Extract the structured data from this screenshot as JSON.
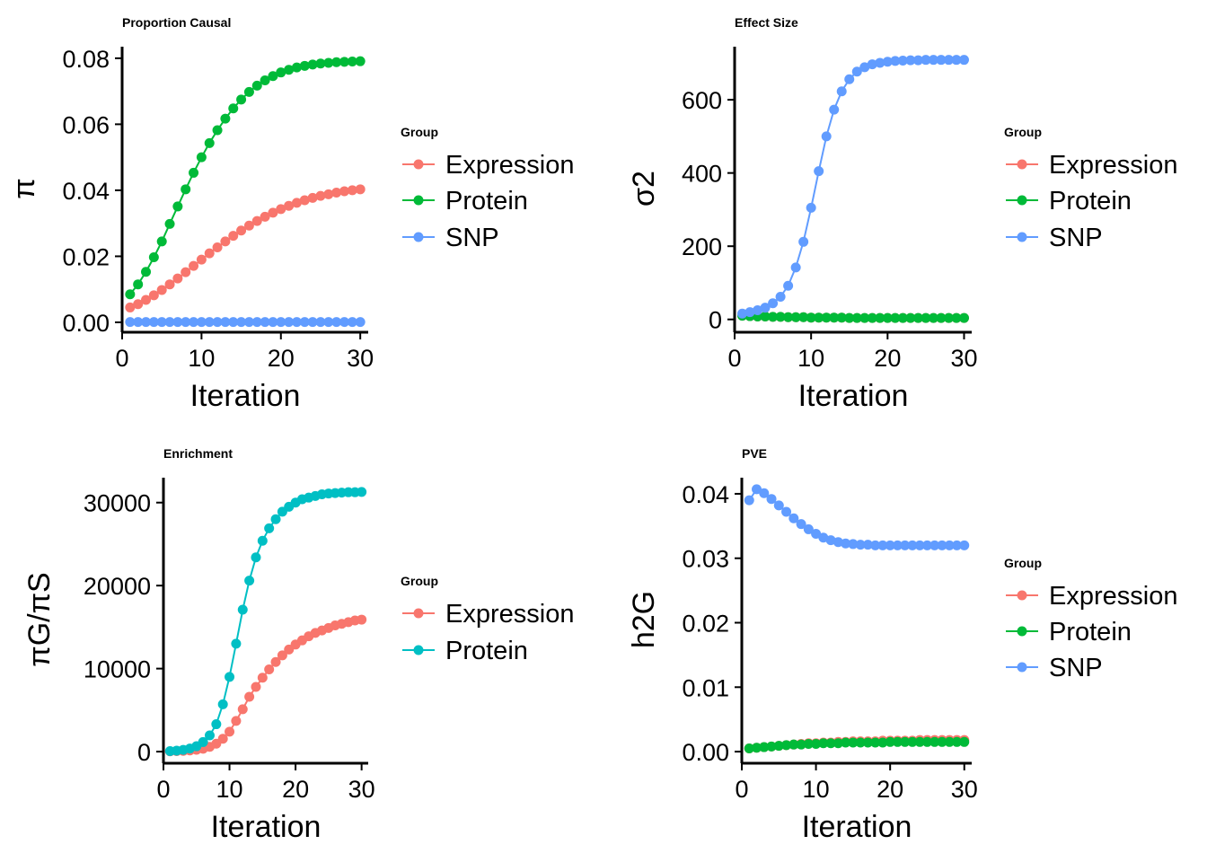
{
  "chart_data": [
    {
      "type": "line",
      "title": "Proportion Causal",
      "xlabel": "Iteration",
      "ylabel": "π",
      "xlim": [
        0,
        31
      ],
      "ylim": [
        -0.003,
        0.0835
      ],
      "x_ticks": [
        0,
        10,
        20,
        30
      ],
      "x_tick_labels": [
        "0",
        "10",
        "20",
        "30"
      ],
      "y_ticks": [
        0,
        0.02,
        0.04,
        0.06,
        0.08
      ],
      "y_tick_labels": [
        "0.00",
        "0.02",
        "0.04",
        "0.06",
        "0.08"
      ],
      "legend": {
        "title": "Group",
        "position": "right"
      },
      "grid": false,
      "series": [
        {
          "name": "Expression",
          "color": "#F8766D",
          "x": [
            1,
            2,
            3,
            4,
            5,
            6,
            7,
            8,
            9,
            10,
            11,
            12,
            13,
            14,
            15,
            16,
            17,
            18,
            19,
            20,
            21,
            22,
            23,
            24,
            25,
            26,
            27,
            28,
            29,
            30
          ],
          "y": [
            0.0045,
            0.0055,
            0.0068,
            0.0082,
            0.0098,
            0.0115,
            0.0133,
            0.0152,
            0.0171,
            0.019,
            0.0209,
            0.0227,
            0.0245,
            0.0262,
            0.0278,
            0.0293,
            0.0307,
            0.032,
            0.0332,
            0.0343,
            0.0353,
            0.0362,
            0.037,
            0.0377,
            0.0383,
            0.0388,
            0.0393,
            0.0397,
            0.04,
            0.0403
          ]
        },
        {
          "name": "Protein",
          "color": "#00BA38",
          "x": [
            1,
            2,
            3,
            4,
            5,
            6,
            7,
            8,
            9,
            10,
            11,
            12,
            13,
            14,
            15,
            16,
            17,
            18,
            19,
            20,
            21,
            22,
            23,
            24,
            25,
            26,
            27,
            28,
            29,
            30
          ],
          "y": [
            0.0085,
            0.0115,
            0.0153,
            0.0197,
            0.0245,
            0.0298,
            0.0351,
            0.0403,
            0.0453,
            0.05,
            0.0543,
            0.0582,
            0.0617,
            0.0648,
            0.0675,
            0.0698,
            0.0717,
            0.0733,
            0.0746,
            0.0757,
            0.0765,
            0.0772,
            0.0777,
            0.0781,
            0.0784,
            0.0786,
            0.0788,
            0.0789,
            0.079,
            0.0791
          ]
        },
        {
          "name": "SNP",
          "color": "#619CFF",
          "x": [
            1,
            2,
            3,
            4,
            5,
            6,
            7,
            8,
            9,
            10,
            11,
            12,
            13,
            14,
            15,
            16,
            17,
            18,
            19,
            20,
            21,
            22,
            23,
            24,
            25,
            26,
            27,
            28,
            29,
            30
          ],
          "y": [
            0.0001,
            0.0001,
            0.0001,
            0.0001,
            0.0001,
            0.0001,
            0.0001,
            0.0001,
            0.0001,
            0.0001,
            0.0001,
            0.0001,
            0.0001,
            0.0001,
            0.0001,
            0.0001,
            0.0001,
            0.0001,
            0.0001,
            0.0001,
            0.0001,
            0.0001,
            0.0001,
            0.0001,
            0.0001,
            0.0001,
            0.0001,
            0.0001,
            0.0001,
            0.0001
          ]
        }
      ]
    },
    {
      "type": "line",
      "title": "Effect Size",
      "xlabel": "Iteration",
      "ylabel": "σ2",
      "xlim": [
        0,
        31
      ],
      "ylim": [
        -35,
        745
      ],
      "x_ticks": [
        0,
        10,
        20,
        30
      ],
      "x_tick_labels": [
        "0",
        "10",
        "20",
        "30"
      ],
      "y_ticks": [
        0,
        200,
        400,
        600
      ],
      "y_tick_labels": [
        "0",
        "200",
        "400",
        "600"
      ],
      "legend": {
        "title": "Group",
        "position": "right"
      },
      "grid": false,
      "series": [
        {
          "name": "Expression",
          "color": "#F8766D",
          "x": [
            1,
            2,
            3,
            4,
            5,
            6,
            7,
            8,
            9,
            10,
            11,
            12,
            13,
            14,
            15,
            16,
            17,
            18,
            19,
            20,
            21,
            22,
            23,
            24,
            25,
            26,
            27,
            28,
            29,
            30
          ],
          "y": [
            10,
            9,
            8,
            8,
            7,
            7,
            6,
            6,
            6,
            5,
            5,
            5,
            5,
            5,
            4,
            4,
            4,
            4,
            4,
            4,
            4,
            4,
            4,
            4,
            4,
            4,
            4,
            4,
            4,
            4
          ]
        },
        {
          "name": "Protein",
          "color": "#00BA38",
          "x": [
            1,
            2,
            3,
            4,
            5,
            6,
            7,
            8,
            9,
            10,
            11,
            12,
            13,
            14,
            15,
            16,
            17,
            18,
            19,
            20,
            21,
            22,
            23,
            24,
            25,
            26,
            27,
            28,
            29,
            30
          ],
          "y": [
            10,
            9,
            8,
            8,
            7,
            7,
            6,
            6,
            6,
            5,
            5,
            5,
            5,
            5,
            4,
            4,
            4,
            4,
            4,
            4,
            4,
            4,
            4,
            4,
            4,
            4,
            4,
            4,
            4,
            4
          ]
        },
        {
          "name": "SNP",
          "color": "#619CFF",
          "x": [
            1,
            2,
            3,
            4,
            5,
            6,
            7,
            8,
            9,
            10,
            11,
            12,
            13,
            14,
            15,
            16,
            17,
            18,
            19,
            20,
            21,
            22,
            23,
            24,
            25,
            26,
            27,
            28,
            29,
            30
          ],
          "y": [
            16,
            20,
            25,
            32,
            44,
            62,
            92,
            142,
            212,
            305,
            405,
            500,
            573,
            623,
            656,
            677,
            689,
            697,
            701,
            704,
            706,
            707,
            708,
            708,
            709,
            709,
            709,
            709,
            709,
            709
          ]
        }
      ]
    },
    {
      "type": "line",
      "title": "Enrichment",
      "xlabel": "Iteration",
      "ylabel": "πG/πS",
      "xlim": [
        0,
        31
      ],
      "ylim": [
        -1400,
        33000
      ],
      "x_ticks": [
        0,
        10,
        20,
        30
      ],
      "x_tick_labels": [
        "0",
        "10",
        "20",
        "30"
      ],
      "y_ticks": [
        0,
        10000,
        20000,
        30000
      ],
      "y_tick_labels": [
        "0",
        "10000",
        "20000",
        "30000"
      ],
      "legend": {
        "title": "Group",
        "position": "right"
      },
      "grid": false,
      "series": [
        {
          "name": "Expression",
          "color": "#F8766D",
          "x": [
            1,
            2,
            3,
            4,
            5,
            6,
            7,
            8,
            9,
            10,
            11,
            12,
            13,
            14,
            15,
            16,
            17,
            18,
            19,
            20,
            21,
            22,
            23,
            24,
            25,
            26,
            27,
            28,
            29,
            30
          ],
          "y": [
            40,
            60,
            90,
            140,
            220,
            350,
            580,
            950,
            1550,
            2400,
            3700,
            5100,
            6600,
            7800,
            8900,
            9900,
            10800,
            11600,
            12300,
            12900,
            13400,
            13900,
            14300,
            14600,
            14900,
            15200,
            15400,
            15600,
            15800,
            15900
          ]
        },
        {
          "name": "Protein",
          "color": "#00BFC4",
          "x": [
            1,
            2,
            3,
            4,
            5,
            6,
            7,
            8,
            9,
            10,
            11,
            12,
            13,
            14,
            15,
            16,
            17,
            18,
            19,
            20,
            21,
            22,
            23,
            24,
            25,
            26,
            27,
            28,
            29,
            30
          ],
          "y": [
            60,
            120,
            210,
            370,
            650,
            1150,
            1950,
            3300,
            5700,
            9000,
            13000,
            17100,
            20600,
            23400,
            25400,
            26900,
            28000,
            28900,
            29500,
            30000,
            30400,
            30600,
            30800,
            31000,
            31100,
            31150,
            31200,
            31250,
            31250,
            31280
          ]
        }
      ]
    },
    {
      "type": "line",
      "title": "PVE",
      "xlabel": "Iteration",
      "ylabel": "h2G",
      "xlim": [
        0,
        31
      ],
      "ylim": [
        -0.0018,
        0.0425
      ],
      "x_ticks": [
        0,
        10,
        20,
        30
      ],
      "x_tick_labels": [
        "0",
        "10",
        "20",
        "30"
      ],
      "y_ticks": [
        0,
        0.01,
        0.02,
        0.03,
        0.04
      ],
      "y_tick_labels": [
        "0.00",
        "0.01",
        "0.02",
        "0.03",
        "0.04"
      ],
      "legend": {
        "title": "Group",
        "position": "right"
      },
      "grid": false,
      "series": [
        {
          "name": "Expression",
          "color": "#F8766D",
          "x": [
            1,
            2,
            3,
            4,
            5,
            6,
            7,
            8,
            9,
            10,
            11,
            12,
            13,
            14,
            15,
            16,
            17,
            18,
            19,
            20,
            21,
            22,
            23,
            24,
            25,
            26,
            27,
            28,
            29,
            30
          ],
          "y": [
            0.0005,
            0.0006,
            0.0007,
            0.0008,
            0.0009,
            0.001,
            0.0011,
            0.0012,
            0.0013,
            0.0013,
            0.0014,
            0.0014,
            0.0015,
            0.0015,
            0.0016,
            0.0016,
            0.0016,
            0.0016,
            0.0017,
            0.0017,
            0.0017,
            0.0017,
            0.0017,
            0.0018,
            0.0018,
            0.0018,
            0.0018,
            0.0018,
            0.0018,
            0.0018
          ]
        },
        {
          "name": "Protein",
          "color": "#00BA38",
          "x": [
            1,
            2,
            3,
            4,
            5,
            6,
            7,
            8,
            9,
            10,
            11,
            12,
            13,
            14,
            15,
            16,
            17,
            18,
            19,
            20,
            21,
            22,
            23,
            24,
            25,
            26,
            27,
            28,
            29,
            30
          ],
          "y": [
            0.0005,
            0.0006,
            0.0007,
            0.0008,
            0.0009,
            0.001,
            0.0011,
            0.0011,
            0.0012,
            0.0012,
            0.0013,
            0.0013,
            0.0013,
            0.0014,
            0.0014,
            0.0014,
            0.0014,
            0.0014,
            0.0014,
            0.0015,
            0.0015,
            0.0015,
            0.0015,
            0.0015,
            0.0015,
            0.0015,
            0.0015,
            0.0015,
            0.0015,
            0.0015
          ]
        },
        {
          "name": "SNP",
          "color": "#619CFF",
          "x": [
            1,
            2,
            3,
            4,
            5,
            6,
            7,
            8,
            9,
            10,
            11,
            12,
            13,
            14,
            15,
            16,
            17,
            18,
            19,
            20,
            21,
            22,
            23,
            24,
            25,
            26,
            27,
            28,
            29,
            30
          ],
          "y": [
            0.039,
            0.0407,
            0.0401,
            0.0392,
            0.0382,
            0.0372,
            0.0362,
            0.0353,
            0.0345,
            0.0338,
            0.0332,
            0.0328,
            0.0325,
            0.0323,
            0.0322,
            0.0321,
            0.0321,
            0.032,
            0.032,
            0.032,
            0.032,
            0.032,
            0.032,
            0.032,
            0.032,
            0.032,
            0.032,
            0.032,
            0.032,
            0.032
          ]
        }
      ]
    }
  ]
}
